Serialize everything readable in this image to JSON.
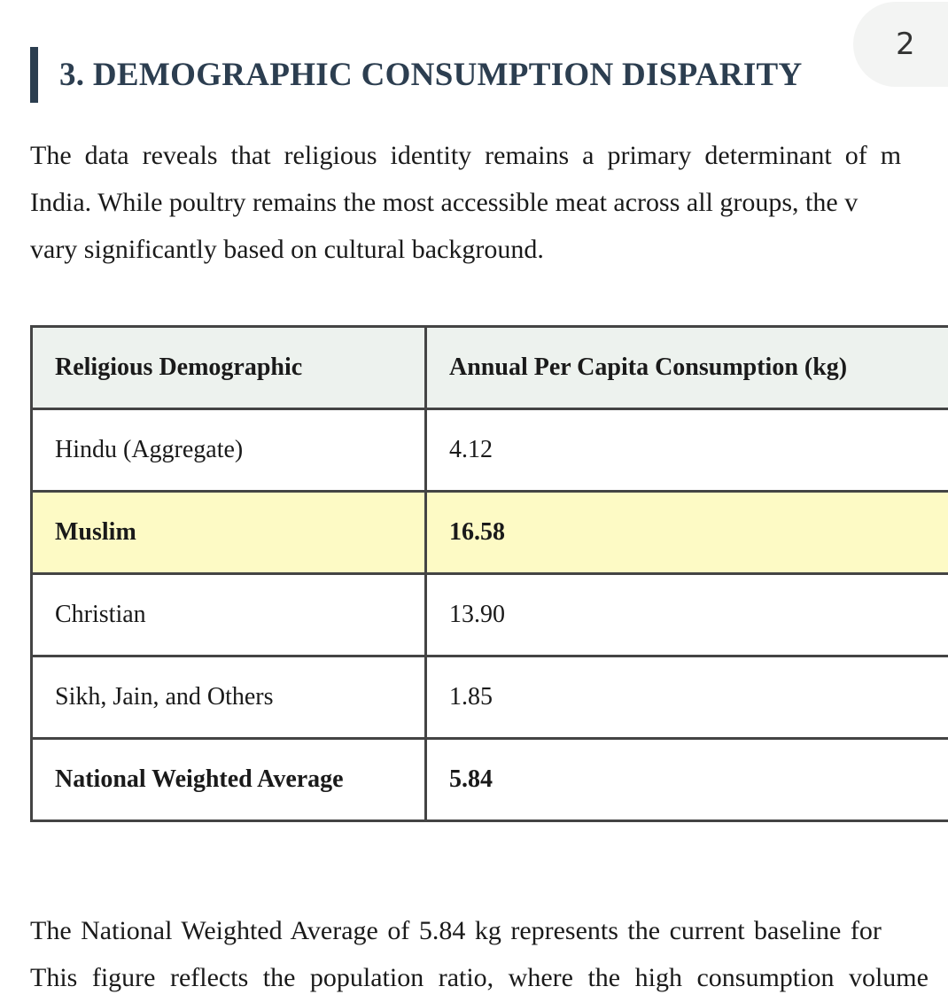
{
  "page_number": "2",
  "section": {
    "title": "3. DEMOGRAPHIC CONSUMPTION DISPARITY"
  },
  "intro_paragraph": {
    "lines": [
      "The data reveals that religious identity remains a primary determinant of m",
      "India. While poultry remains the most accessible meat across all groups, the v",
      "vary significantly based on cultural background."
    ]
  },
  "table": {
    "headers": [
      "Religious Demographic",
      "Annual Per Capita Consumption (kg)"
    ],
    "rows": [
      {
        "demographic": "Hindu (Aggregate)",
        "consumption": "4.12"
      },
      {
        "demographic": "Muslim",
        "consumption": "16.58"
      },
      {
        "demographic": "Christian",
        "consumption": "13.90"
      },
      {
        "demographic": "Sikh, Jain, and Others",
        "consumption": "1.85"
      },
      {
        "demographic": "National Weighted Average",
        "consumption": "5.84"
      }
    ],
    "highlight_color": "#fdfac5",
    "header_bg": "#edf2ee"
  },
  "closing_paragraph": {
    "lines": [
      "The National Weighted Average of 5.84 kg represents the current baseline for",
      "This figure reflects the population ratio, where the high consumption volume"
    ]
  },
  "colors": {
    "heading": "#2c3e50",
    "text": "#1a1a1a",
    "border": "#444444"
  }
}
